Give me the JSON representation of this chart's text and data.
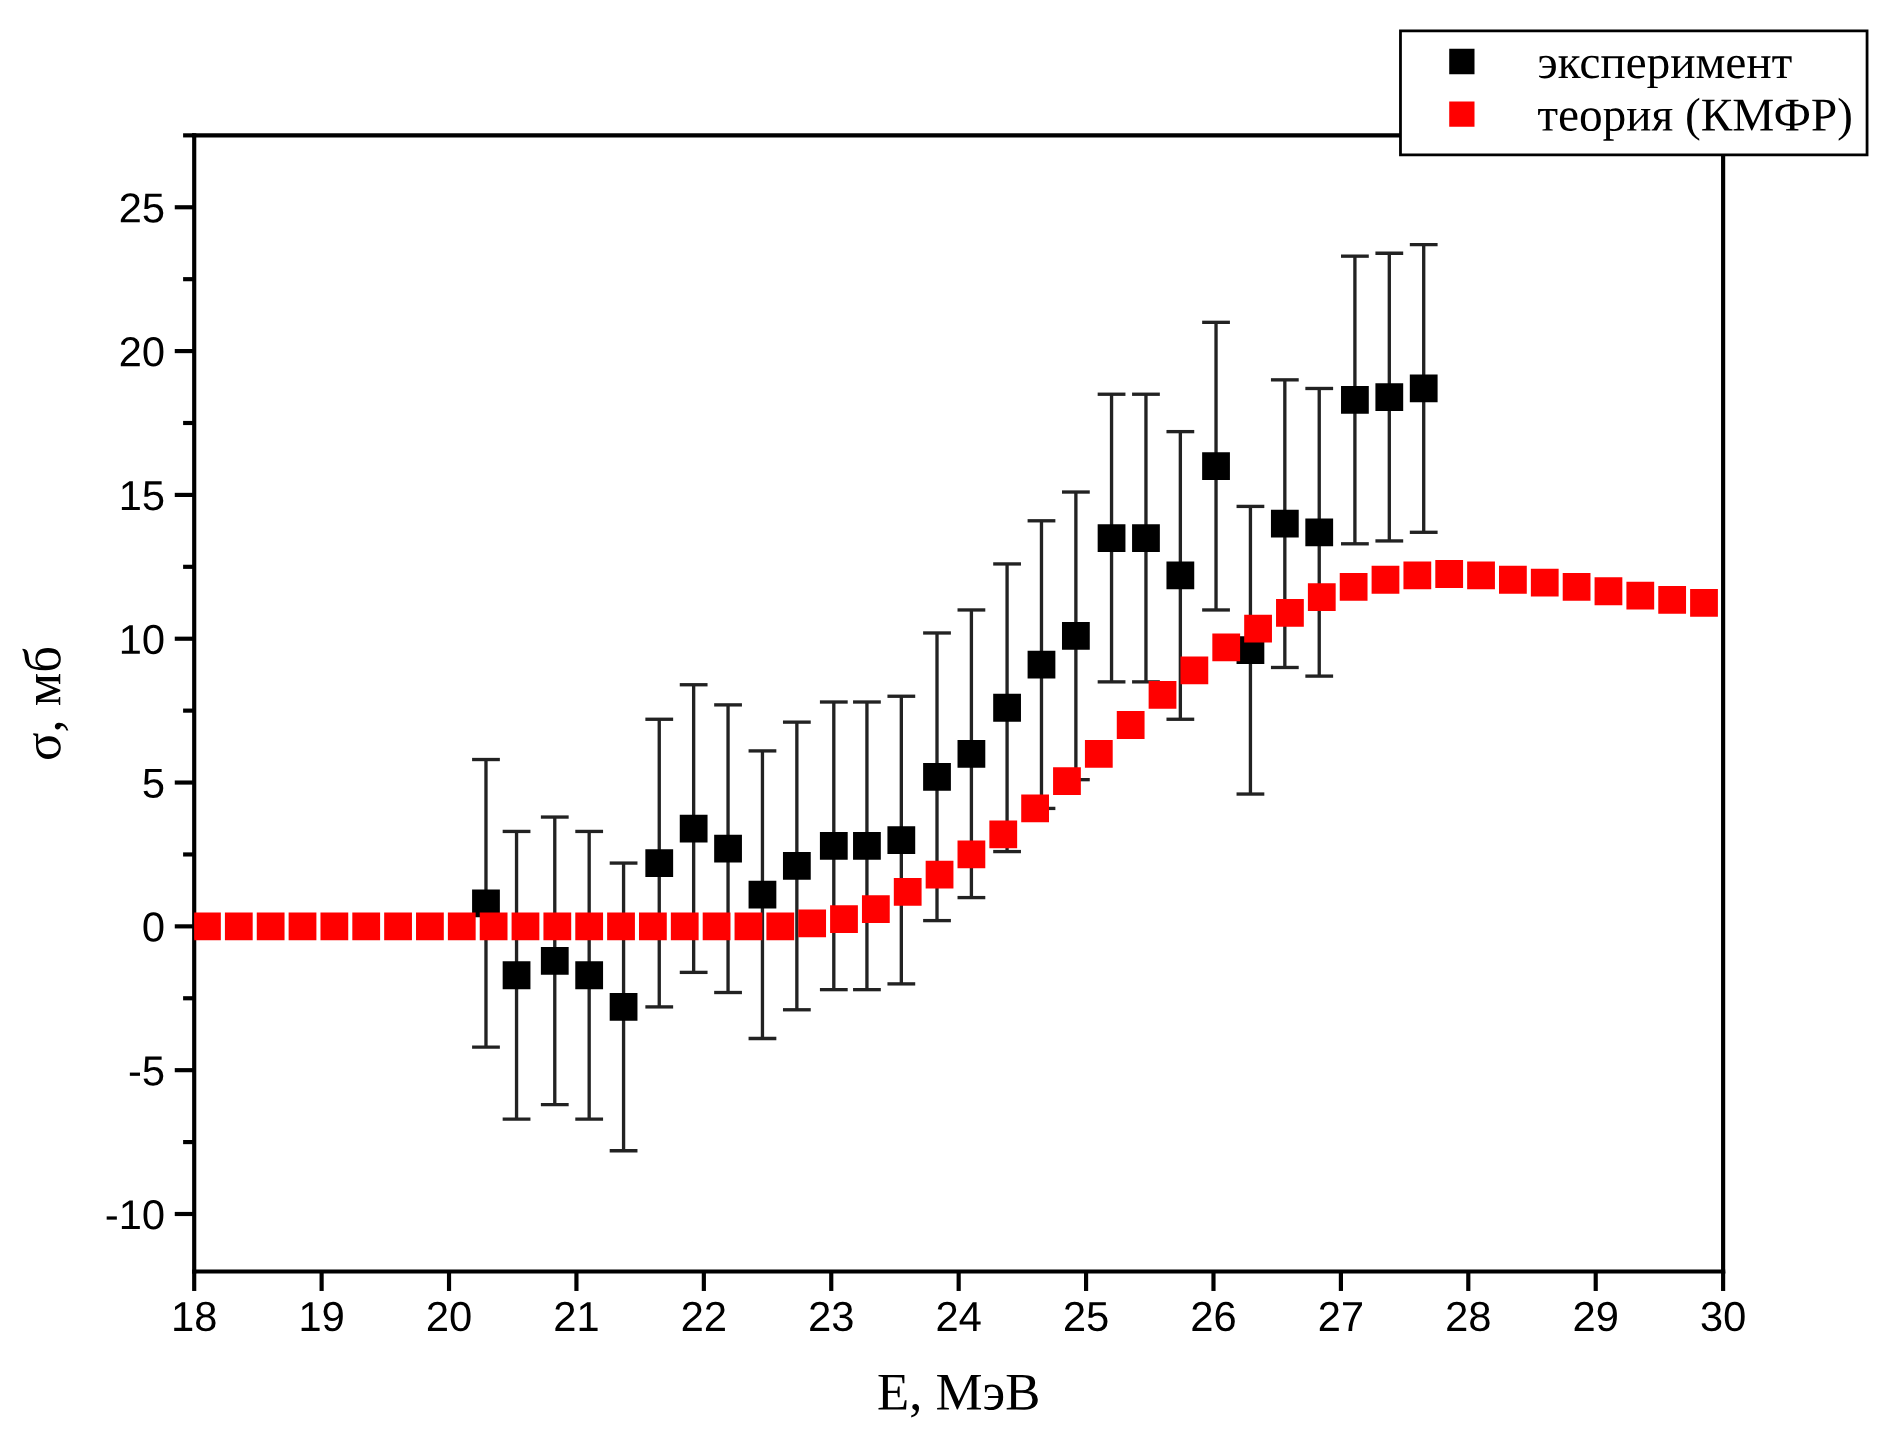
{
  "chart_data": {
    "type": "scatter",
    "xlabel": "E, МэВ",
    "ylabel": "σ, мб",
    "xlim": [
      18,
      30
    ],
    "xticks": [
      18,
      19,
      20,
      21,
      22,
      23,
      24,
      25,
      26,
      27,
      28,
      29,
      30
    ],
    "ylim": [
      -12,
      27.5
    ],
    "yticks": [
      -10,
      -5,
      0,
      5,
      10,
      15,
      20,
      25
    ],
    "marker": "square",
    "grid": false,
    "legend": "top right",
    "series": [
      {
        "name": "эксперимент",
        "color": "#000000",
        "x": [
          20.29,
          20.53,
          20.83,
          21.1,
          21.37,
          21.65,
          21.92,
          22.19,
          22.46,
          22.73,
          23.02,
          23.28,
          23.55,
          23.83,
          24.1,
          24.38,
          24.65,
          24.92,
          25.2,
          25.47,
          25.74,
          26.02,
          26.29,
          26.56,
          26.83,
          27.11,
          27.38,
          27.65
        ],
        "values": [
          0.8,
          -1.7,
          -1.2,
          -1.7,
          -2.8,
          2.2,
          3.4,
          2.7,
          1.1,
          2.1,
          2.8,
          2.8,
          3.0,
          5.2,
          6.0,
          7.6,
          9.1,
          10.1,
          13.5,
          13.5,
          12.2,
          16.0,
          9.6,
          14.0,
          13.7,
          18.3,
          18.4,
          18.7
        ],
        "errors": [
          5,
          5,
          5,
          5,
          5,
          5,
          5,
          5,
          5,
          5,
          5,
          5,
          5,
          5,
          5,
          5,
          5,
          5,
          5,
          5,
          5,
          5,
          5,
          5,
          5,
          5,
          5,
          5
        ]
      },
      {
        "name": "теория (КМФР)",
        "color": "#ff0000",
        "x": [
          18.1,
          18.35,
          18.6,
          18.85,
          19.1,
          19.35,
          19.6,
          19.85,
          20.1,
          20.35,
          20.6,
          20.85,
          21.1,
          21.35,
          21.6,
          21.85,
          22.1,
          22.35,
          22.6,
          22.85,
          23.1,
          23.35,
          23.6,
          23.85,
          24.1,
          24.35,
          24.6,
          24.85,
          25.1,
          25.35,
          25.6,
          25.85,
          26.1,
          26.35,
          26.6,
          26.85,
          27.1,
          27.35,
          27.6,
          27.85,
          28.1,
          28.35,
          28.6,
          28.85,
          29.1,
          29.35,
          29.6,
          29.85
        ],
        "values": [
          0,
          0,
          0,
          0,
          0,
          0,
          0,
          0,
          0,
          0,
          0,
          0,
          0,
          0,
          0,
          0,
          0,
          0,
          0,
          0.1,
          0.25,
          0.6,
          1.2,
          1.8,
          2.5,
          3.2,
          4.1,
          5.05,
          6.0,
          7.0,
          8.05,
          8.9,
          9.7,
          10.35,
          10.9,
          11.45,
          11.8,
          12.05,
          12.2,
          12.25,
          12.2,
          12.05,
          11.95,
          11.8,
          11.65,
          11.5,
          11.35,
          11.25
        ]
      }
    ]
  }
}
